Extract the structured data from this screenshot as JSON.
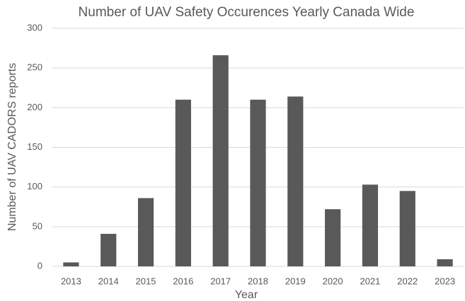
{
  "chart_data": {
    "type": "bar",
    "title": "Number of UAV Safety Occurences Yearly Canada Wide",
    "x_label": "Year",
    "y_label": "Number of UAV CADORS reports",
    "categories": [
      "2013",
      "2014",
      "2015",
      "2016",
      "2017",
      "2018",
      "2019",
      "2020",
      "2021",
      "2022",
      "2023"
    ],
    "values": [
      5,
      41,
      86,
      210,
      266,
      210,
      214,
      72,
      103,
      95,
      9
    ],
    "color": "#595959",
    "ylim": [
      0,
      300
    ],
    "yticks": [
      0,
      50,
      100,
      150,
      200,
      250,
      300
    ],
    "grid": true
  }
}
